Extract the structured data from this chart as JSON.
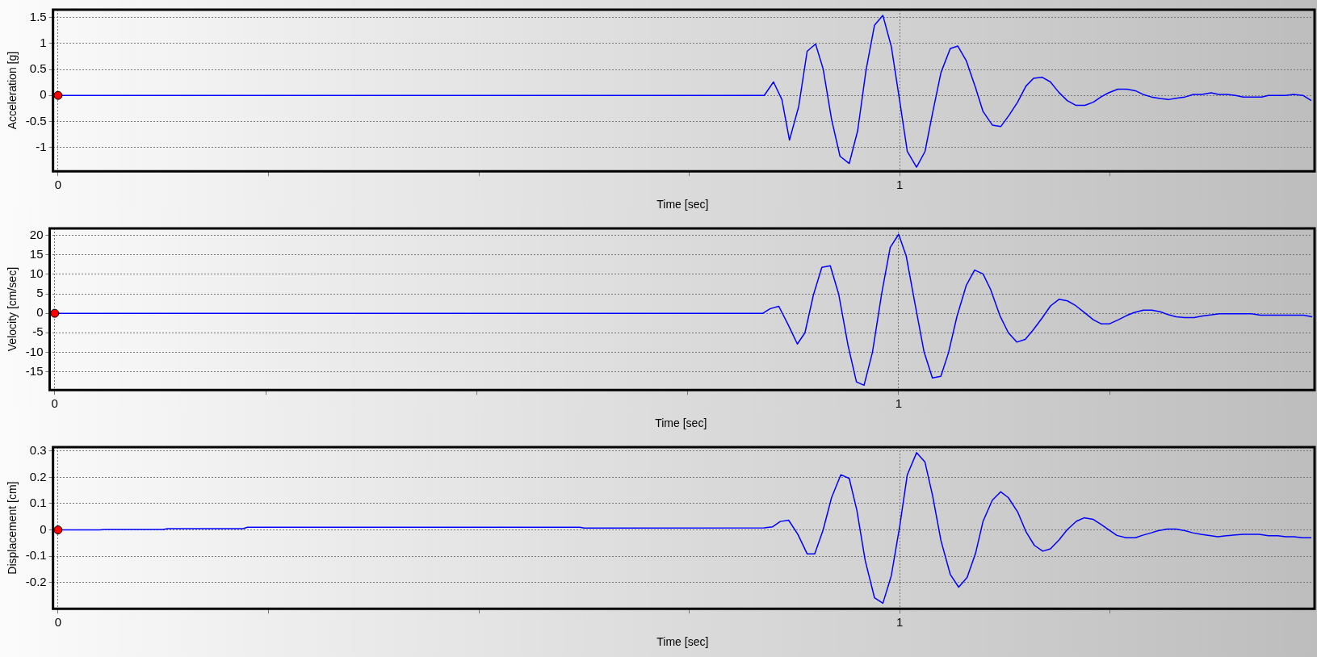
{
  "chart_data": [
    {
      "type": "line",
      "xlabel": "Time [sec]",
      "ylabel": "Acceleration [g]",
      "xlim": [
        -0.006,
        1.49
      ],
      "xticks": [
        {
          "value": 0,
          "label": "0"
        },
        {
          "value": 0.25,
          "label": null
        },
        {
          "value": 0.5,
          "label": null
        },
        {
          "value": 0.75,
          "label": null
        },
        {
          "value": 1,
          "label": "1"
        },
        {
          "value": 1.25,
          "label": null
        }
      ],
      "ylim": [
        -1.46,
        1.65
      ],
      "yticks": [
        -1,
        -0.5,
        0,
        0.5,
        1,
        1.5
      ],
      "grid": true,
      "marker": "none",
      "series": [
        {
          "color": "#0000ff",
          "x": [
            0,
            0.839,
            0.85,
            0.86,
            0.869,
            0.88,
            0.89,
            0.9,
            0.909,
            0.919,
            0.929,
            0.94,
            0.95,
            0.96,
            0.97,
            0.98,
            0.99,
            1.0,
            1.009,
            1.02,
            1.03,
            1.039,
            1.049,
            1.06,
            1.069,
            1.079,
            1.09,
            1.099,
            1.11,
            1.12,
            1.13,
            1.14,
            1.15,
            1.159,
            1.169,
            1.179,
            1.189,
            1.199,
            1.209,
            1.22,
            1.23,
            1.239,
            1.248,
            1.259,
            1.27,
            1.28,
            1.289,
            1.299,
            1.309,
            1.319,
            1.33,
            1.339,
            1.349,
            1.359,
            1.37,
            1.379,
            1.389,
            1.399,
            1.408,
            1.419,
            1.43,
            1.438,
            1.449,
            1.458,
            1.468,
            1.479,
            1.489
          ],
          "values": [
            0,
            0,
            0.26,
            -0.08,
            -0.86,
            -0.21,
            0.85,
            0.99,
            0.51,
            -0.46,
            -1.17,
            -1.31,
            -0.68,
            0.49,
            1.35,
            1.54,
            0.94,
            -0.11,
            -1.08,
            -1.38,
            -1.08,
            -0.34,
            0.44,
            0.9,
            0.95,
            0.67,
            0.15,
            -0.31,
            -0.57,
            -0.6,
            -0.38,
            -0.13,
            0.18,
            0.33,
            0.35,
            0.26,
            0.06,
            -0.1,
            -0.19,
            -0.19,
            -0.13,
            -0.03,
            0.05,
            0.12,
            0.12,
            0.09,
            0.02,
            -0.03,
            -0.06,
            -0.08,
            -0.05,
            -0.03,
            0.02,
            0.02,
            0.05,
            0.02,
            0.02,
            0,
            -0.03,
            -0.03,
            -0.03,
            0,
            0,
            0,
            0.02,
            0,
            -0.1
          ]
        },
        {
          "type": "scatter",
          "marker": "circle",
          "color": "#ff0000",
          "x": [
            0
          ],
          "values": [
            0
          ]
        }
      ]
    },
    {
      "type": "line",
      "xlabel": "Time [sec]",
      "ylabel": "Velocity [cm/sec]",
      "xlim": [
        -0.006,
        1.49
      ],
      "xticks": [
        {
          "value": 0,
          "label": "0"
        },
        {
          "value": 0.25,
          "label": null
        },
        {
          "value": 0.5,
          "label": null
        },
        {
          "value": 0.75,
          "label": null
        },
        {
          "value": 1,
          "label": "1"
        },
        {
          "value": 1.25,
          "label": null
        }
      ],
      "ylim": [
        -19.7,
        21.8
      ],
      "yticks": [
        -15,
        -10,
        -5,
        0,
        5,
        10,
        15,
        20
      ],
      "grid": true,
      "marker": "none",
      "series": [
        {
          "color": "#0000ff",
          "x": [
            0,
            0.839,
            0.848,
            0.858,
            0.869,
            0.88,
            0.889,
            0.899,
            0.909,
            0.919,
            0.929,
            0.94,
            0.95,
            0.959,
            0.969,
            0.98,
            0.99,
            1.0,
            1.009,
            1.019,
            1.03,
            1.04,
            1.05,
            1.059,
            1.069,
            1.08,
            1.09,
            1.1,
            1.109,
            1.12,
            1.13,
            1.14,
            1.15,
            1.16,
            1.17,
            1.18,
            1.19,
            1.2,
            1.209,
            1.22,
            1.231,
            1.24,
            1.25,
            1.26,
            1.27,
            1.279,
            1.29,
            1.3,
            1.31,
            1.32,
            1.329,
            1.339,
            1.35,
            1.36,
            1.371,
            1.38,
            1.418,
            1.429,
            1.48,
            1.49
          ],
          "values": [
            0,
            0,
            1.2,
            1.8,
            -2.9,
            -7.9,
            -5,
            4.7,
            11.8,
            12.2,
            4.9,
            -8.2,
            -17.6,
            -18.5,
            -10,
            5.2,
            16.9,
            20.3,
            14.7,
            2.9,
            -9.8,
            -16.6,
            -16.2,
            -10.2,
            -0.9,
            7.1,
            11.1,
            10.1,
            6.1,
            -0.6,
            -5,
            -7.4,
            -6.7,
            -4.1,
            -1.2,
            1.9,
            3.6,
            3.2,
            2.1,
            0.2,
            -1.7,
            -2.7,
            -2.7,
            -1.7,
            -0.6,
            0.2,
            0.8,
            0.8,
            0.4,
            -0.4,
            -0.9,
            -1.1,
            -1.1,
            -0.7,
            -0.4,
            -0.1,
            -0.1,
            -0.5,
            -0.5,
            -0.9
          ]
        },
        {
          "type": "scatter",
          "marker": "circle",
          "color": "#ff0000",
          "x": [
            0
          ],
          "values": [
            0
          ]
        }
      ]
    },
    {
      "type": "line",
      "xlabel": "Time [sec]",
      "ylabel": "Displacement [cm]",
      "xlim": [
        -0.006,
        1.49
      ],
      "xticks": [
        {
          "value": 0,
          "label": "0"
        },
        {
          "value": 0.25,
          "label": null
        },
        {
          "value": 0.5,
          "label": null
        },
        {
          "value": 0.75,
          "label": null
        },
        {
          "value": 1,
          "label": "1"
        },
        {
          "value": 1.25,
          "label": null
        }
      ],
      "ylim": [
        -0.3,
        0.315
      ],
      "yticks": [
        -0.2,
        -0.1,
        0,
        0.1,
        0.2,
        0.3
      ],
      "grid": true,
      "marker": "none",
      "series": [
        {
          "color": "#0000ff",
          "x": [
            0,
            0.05,
            0.055,
            0.125,
            0.13,
            0.22,
            0.225,
            0.62,
            0.625,
            0.839,
            0.849,
            0.858,
            0.868,
            0.879,
            0.89,
            0.899,
            0.909,
            0.919,
            0.93,
            0.94,
            0.949,
            0.959,
            0.97,
            0.98,
            0.99,
            1.0,
            1.009,
            1.02,
            1.03,
            1.039,
            1.049,
            1.06,
            1.07,
            1.08,
            1.09,
            1.099,
            1.11,
            1.12,
            1.129,
            1.14,
            1.15,
            1.16,
            1.17,
            1.179,
            1.189,
            1.199,
            1.21,
            1.219,
            1.23,
            1.239,
            1.249,
            1.258,
            1.269,
            1.28,
            1.288,
            1.299,
            1.307,
            1.318,
            1.328,
            1.339,
            1.348,
            1.358,
            1.378,
            1.388,
            1.408,
            1.427,
            1.438,
            1.449,
            1.459,
            1.468,
            1.479,
            1.489
          ],
          "values": [
            0,
            0,
            0.002,
            0.002,
            0.005,
            0.005,
            0.01,
            0.01,
            0.007,
            0.008,
            0.012,
            0.032,
            0.037,
            -0.017,
            -0.091,
            -0.091,
            0,
            0.123,
            0.21,
            0.196,
            0.076,
            -0.117,
            -0.258,
            -0.279,
            -0.174,
            0.014,
            0.21,
            0.294,
            0.258,
            0.131,
            -0.041,
            -0.169,
            -0.218,
            -0.181,
            -0.09,
            0.033,
            0.113,
            0.145,
            0.123,
            0.069,
            -0.007,
            -0.059,
            -0.081,
            -0.072,
            -0.039,
            0.001,
            0.033,
            0.046,
            0.04,
            0.021,
            -0.001,
            -0.021,
            -0.03,
            -0.03,
            -0.021,
            -0.011,
            -0.003,
            0.003,
            0.003,
            -0.003,
            -0.011,
            -0.017,
            -0.026,
            -0.022,
            -0.017,
            -0.017,
            -0.022,
            -0.022,
            -0.026,
            -0.026,
            -0.03,
            -0.03
          ]
        },
        {
          "type": "scatter",
          "marker": "circle",
          "color": "#ff0000",
          "x": [
            0
          ],
          "values": [
            0
          ]
        }
      ]
    }
  ]
}
